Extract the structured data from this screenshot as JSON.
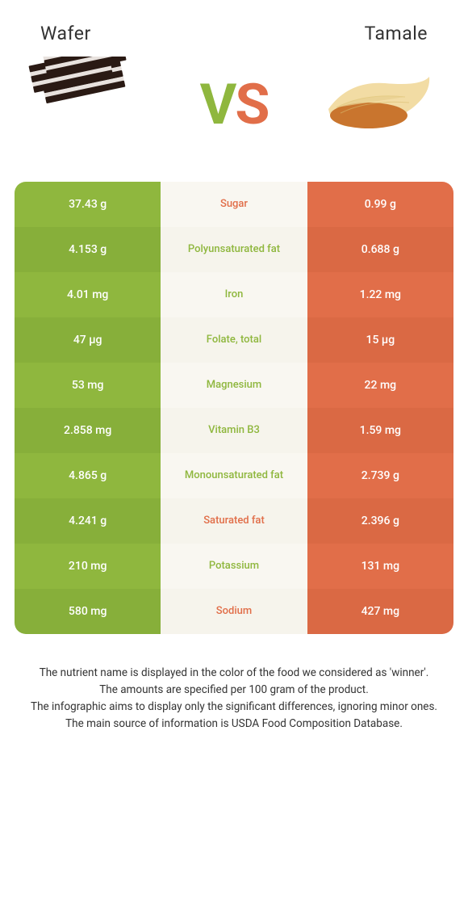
{
  "header": {
    "food1": "Wafer",
    "food2": "Tamale",
    "vs_v": "V",
    "vs_s": "S"
  },
  "colors": {
    "left_bg": "#8fb73e",
    "left_bg_alt": "#87af3a",
    "right_bg": "#e16e49",
    "right_bg_alt": "#da6944",
    "mid_green": "#8fb73e",
    "mid_orange": "#e16e49"
  },
  "rows": [
    {
      "left": "37.43 g",
      "label": "Sugar",
      "right": "0.99 g",
      "winner": "right"
    },
    {
      "left": "4.153 g",
      "label": "Polyunsaturated fat",
      "right": "0.688 g",
      "winner": "left"
    },
    {
      "left": "4.01 mg",
      "label": "Iron",
      "right": "1.22 mg",
      "winner": "left"
    },
    {
      "left": "47 µg",
      "label": "Folate, total",
      "right": "15 µg",
      "winner": "left"
    },
    {
      "left": "53 mg",
      "label": "Magnesium",
      "right": "22 mg",
      "winner": "left"
    },
    {
      "left": "2.858 mg",
      "label": "Vitamin B3",
      "right": "1.59 mg",
      "winner": "left"
    },
    {
      "left": "4.865 g",
      "label": "Monounsaturated fat",
      "right": "2.739 g",
      "winner": "left"
    },
    {
      "left": "4.241 g",
      "label": "Saturated fat",
      "right": "2.396 g",
      "winner": "right"
    },
    {
      "left": "210 mg",
      "label": "Potassium",
      "right": "131 mg",
      "winner": "left"
    },
    {
      "left": "580 mg",
      "label": "Sodium",
      "right": "427 mg",
      "winner": "right"
    }
  ],
  "footnotes": [
    "The nutrient name is displayed in the color of the food we considered as 'winner'.",
    "The amounts are specified per 100 gram of the product.",
    "The infographic aims to display only the significant differences, ignoring minor ones.",
    "The main source of information is USDA Food Composition Database."
  ]
}
